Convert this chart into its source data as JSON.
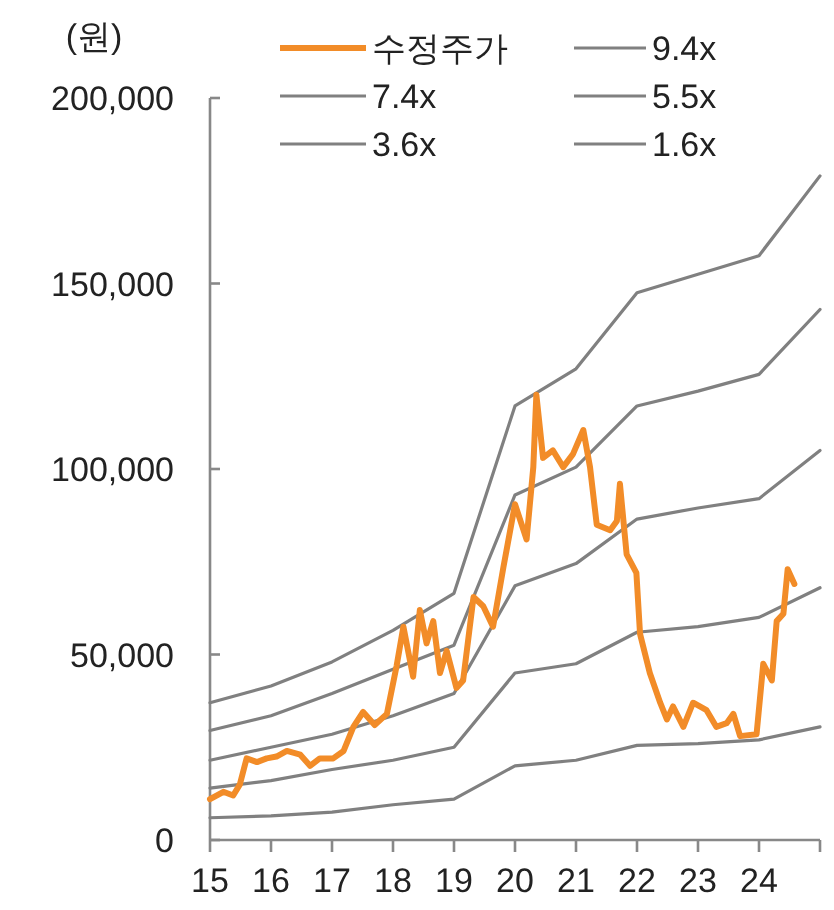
{
  "chart_data": {
    "type": "line",
    "ylabel": "(원)",
    "xlim": [
      15,
      25
    ],
    "ylim": [
      0,
      200000
    ],
    "xticks": [
      15,
      16,
      17,
      18,
      19,
      20,
      21,
      22,
      23,
      24
    ],
    "yticks": [
      {
        "value": 0,
        "label": "0"
      },
      {
        "value": 50000,
        "label": "50,000"
      },
      {
        "value": 100000,
        "label": "100,000"
      },
      {
        "value": 150000,
        "label": "150,000"
      },
      {
        "value": 200000,
        "label": "200,000"
      }
    ],
    "grid": false,
    "legend": "top",
    "marker": "none",
    "line_style": "solid",
    "series": [
      {
        "name": "수정주가",
        "color": "#f28c28",
        "x": [
          15.0,
          15.22,
          15.38,
          15.49,
          15.6,
          15.77,
          15.93,
          16.09,
          16.26,
          16.48,
          16.64,
          16.8,
          17.02,
          17.19,
          17.35,
          17.51,
          17.7,
          17.9,
          18.06,
          18.17,
          18.33,
          18.44,
          18.55,
          18.66,
          18.77,
          18.88,
          19.04,
          19.15,
          19.32,
          19.48,
          19.64,
          19.81,
          20.0,
          20.19,
          20.3,
          20.35,
          20.46,
          20.62,
          20.79,
          20.95,
          21.12,
          21.23,
          21.34,
          21.56,
          21.67,
          21.72,
          21.83,
          21.99,
          22.05,
          22.21,
          22.38,
          22.49,
          22.59,
          22.76,
          22.92,
          23.14,
          23.3,
          23.47,
          23.58,
          23.69,
          23.96,
          24.07,
          24.21,
          24.29,
          24.4,
          24.47,
          24.58
        ],
        "values": [
          11000,
          13000,
          12000,
          15000,
          22000,
          21000,
          22000,
          22500,
          24000,
          23000,
          20000,
          22000,
          22000,
          24000,
          30500,
          34500,
          31000,
          34000,
          47000,
          57500,
          44000,
          62000,
          53000,
          59000,
          45000,
          51000,
          41000,
          43000,
          65500,
          63000,
          57500,
          73500,
          90500,
          81000,
          100500,
          120000,
          103000,
          105000,
          100500,
          104000,
          110500,
          100500,
          85000,
          83500,
          86000,
          96000,
          77000,
          72000,
          55500,
          45000,
          37000,
          32500,
          36000,
          30500,
          37000,
          35000,
          30500,
          31500,
          34000,
          28000,
          28500,
          47500,
          43000,
          59000,
          61000,
          73000,
          69000
        ]
      },
      {
        "name": "9.4x",
        "color": "#808080",
        "x": [
          15,
          16,
          17,
          18,
          19,
          20,
          21,
          22,
          23,
          24,
          25
        ],
        "values": [
          37000,
          41500,
          48000,
          56500,
          66500,
          117000,
          127000,
          147500,
          152500,
          157500,
          179000
        ]
      },
      {
        "name": "7.4x",
        "color": "#808080",
        "x": [
          15,
          16,
          17,
          18,
          19,
          20,
          21,
          22,
          23,
          24,
          25
        ],
        "values": [
          29500,
          33500,
          39500,
          46000,
          52500,
          93000,
          100500,
          117000,
          121000,
          125500,
          143000
        ]
      },
      {
        "name": "5.5x",
        "color": "#808080",
        "x": [
          15,
          16,
          17,
          18,
          19,
          20,
          21,
          22,
          23,
          24,
          25
        ],
        "values": [
          21500,
          25000,
          28500,
          33500,
          39500,
          68500,
          74500,
          86500,
          89500,
          92000,
          105000
        ]
      },
      {
        "name": "3.6x",
        "color": "#808080",
        "x": [
          15,
          16,
          17,
          18,
          19,
          20,
          21,
          22,
          23,
          24,
          25
        ],
        "values": [
          14000,
          16000,
          19000,
          21500,
          25000,
          45000,
          47500,
          56000,
          57500,
          60000,
          68000
        ]
      },
      {
        "name": "1.6x",
        "color": "#808080",
        "x": [
          15,
          16,
          17,
          18,
          19,
          20,
          21,
          22,
          23,
          24,
          25
        ],
        "values": [
          6000,
          6500,
          7500,
          9500,
          11000,
          20000,
          21500,
          25500,
          26000,
          27000,
          30500
        ]
      }
    ]
  }
}
